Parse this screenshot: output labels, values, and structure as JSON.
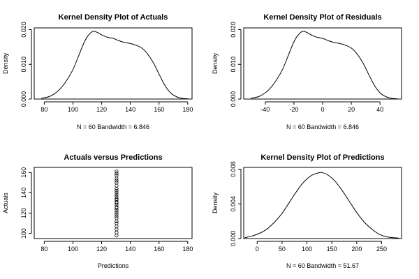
{
  "chart_data": [
    {
      "type": "line",
      "title": "Kernel Density Plot of Actuals",
      "xlabel": "N = 60   Bandwidth = 6.846",
      "ylabel": "Density",
      "xlim": [
        73,
        183
      ],
      "ylim": [
        0,
        0.0205
      ],
      "x_ticks": [
        80,
        100,
        120,
        140,
        160,
        180
      ],
      "y_ticks": [
        0.0,
        0.01,
        0.02
      ],
      "x_tick_labels": [
        "80",
        "100",
        "120",
        "140",
        "160",
        "180"
      ],
      "y_tick_labels": [
        "0.000",
        "0.010",
        "0.020"
      ],
      "grid": false,
      "x": [
        78,
        84,
        90,
        95,
        100,
        104,
        108,
        111,
        114,
        117,
        120,
        124,
        128,
        132,
        136,
        140,
        144,
        148,
        152,
        156,
        160,
        164,
        168,
        172,
        176,
        180
      ],
      "y": [
        0.0002,
        0.0008,
        0.0025,
        0.005,
        0.0085,
        0.0125,
        0.0165,
        0.0185,
        0.0195,
        0.0192,
        0.0185,
        0.0178,
        0.0175,
        0.0168,
        0.0163,
        0.016,
        0.0155,
        0.0147,
        0.013,
        0.0105,
        0.0072,
        0.004,
        0.0018,
        0.0007,
        0.0002,
        0.0001
      ]
    },
    {
      "type": "line",
      "title": "Kernel Density Plot of Residuals",
      "xlabel": "N = 60   Bandwidth = 6.846",
      "ylabel": "Density",
      "xlim": [
        -55,
        55
      ],
      "ylim": [
        0,
        0.0205
      ],
      "x_ticks": [
        -40,
        -20,
        0,
        20,
        40
      ],
      "y_ticks": [
        0.0,
        0.01,
        0.02
      ],
      "x_tick_labels": [
        "-40",
        "-20",
        "0",
        "20",
        "40"
      ],
      "y_tick_labels": [
        "0.000",
        "0.010",
        "0.020"
      ],
      "grid": false,
      "x": [
        -50,
        -44,
        -38,
        -33,
        -28,
        -24,
        -20,
        -17,
        -14,
        -11,
        -8,
        -4,
        0,
        4,
        8,
        12,
        16,
        20,
        24,
        28,
        32,
        36,
        40,
        44,
        48,
        52
      ],
      "y": [
        0.0002,
        0.0008,
        0.0025,
        0.005,
        0.0085,
        0.0125,
        0.0165,
        0.0185,
        0.0195,
        0.0192,
        0.0185,
        0.0178,
        0.0175,
        0.0168,
        0.0163,
        0.016,
        0.0155,
        0.0147,
        0.013,
        0.0105,
        0.0072,
        0.004,
        0.0018,
        0.0007,
        0.0002,
        0.0001
      ]
    },
    {
      "type": "scatter",
      "title": "Actuals versus Predictions",
      "xlabel": "Predictions",
      "ylabel": "Actuals",
      "xlim": [
        73,
        183
      ],
      "ylim": [
        95,
        165
      ],
      "x_ticks": [
        80,
        100,
        120,
        140,
        160,
        180
      ],
      "y_ticks": [
        100,
        120,
        140,
        160
      ],
      "x_tick_labels": [
        "80",
        "100",
        "120",
        "140",
        "160",
        "180"
      ],
      "y_tick_labels": [
        "100",
        "120",
        "140",
        "160"
      ],
      "grid": false,
      "x": [
        130.4,
        130.4,
        130.4,
        130.4,
        130.4,
        130.4,
        130.4,
        130.4,
        130.4,
        130.4,
        130.4,
        130.4,
        130.4,
        130.4,
        130.4,
        130.4,
        130.4,
        130.4,
        130.4,
        130.4,
        130.4,
        130.4,
        130.4,
        130.4,
        130.4,
        130.4,
        130.4,
        130.4,
        130.4,
        130.4
      ],
      "y": [
        98,
        101,
        104,
        107,
        110,
        112,
        115,
        117,
        119,
        121,
        123,
        125,
        126,
        128,
        130,
        131,
        133,
        134,
        136,
        138,
        140,
        142,
        144,
        147,
        150,
        152,
        154,
        157,
        159,
        161
      ]
    },
    {
      "type": "line",
      "title": "Kernel Density Plot of Predictions",
      "xlabel": "N = 60   Bandwidth = 51.67",
      "ylabel": "Density",
      "xlim": [
        -27,
        290
      ],
      "ylim": [
        0,
        0.0082
      ],
      "x_ticks": [
        0,
        50,
        100,
        150,
        200,
        250
      ],
      "y_ticks": [
        0.0,
        0.004,
        0.008
      ],
      "x_tick_labels": [
        "0",
        "50",
        "100",
        "150",
        "200",
        "250"
      ],
      "y_tick_labels": [
        "0.000",
        "0.004",
        "0.008"
      ],
      "grid": false,
      "x": [
        -25,
        -10,
        5,
        20,
        35,
        50,
        65,
        80,
        95,
        110,
        125,
        130,
        140,
        155,
        170,
        185,
        200,
        215,
        230,
        245,
        260,
        275,
        285
      ],
      "y": [
        0.0001,
        0.0003,
        0.0006,
        0.0011,
        0.0019,
        0.0029,
        0.0042,
        0.0055,
        0.0066,
        0.0073,
        0.0076,
        0.0076,
        0.0074,
        0.0067,
        0.0056,
        0.0043,
        0.003,
        0.0019,
        0.0011,
        0.0005,
        0.0002,
        0.0001,
        5e-05
      ]
    }
  ]
}
